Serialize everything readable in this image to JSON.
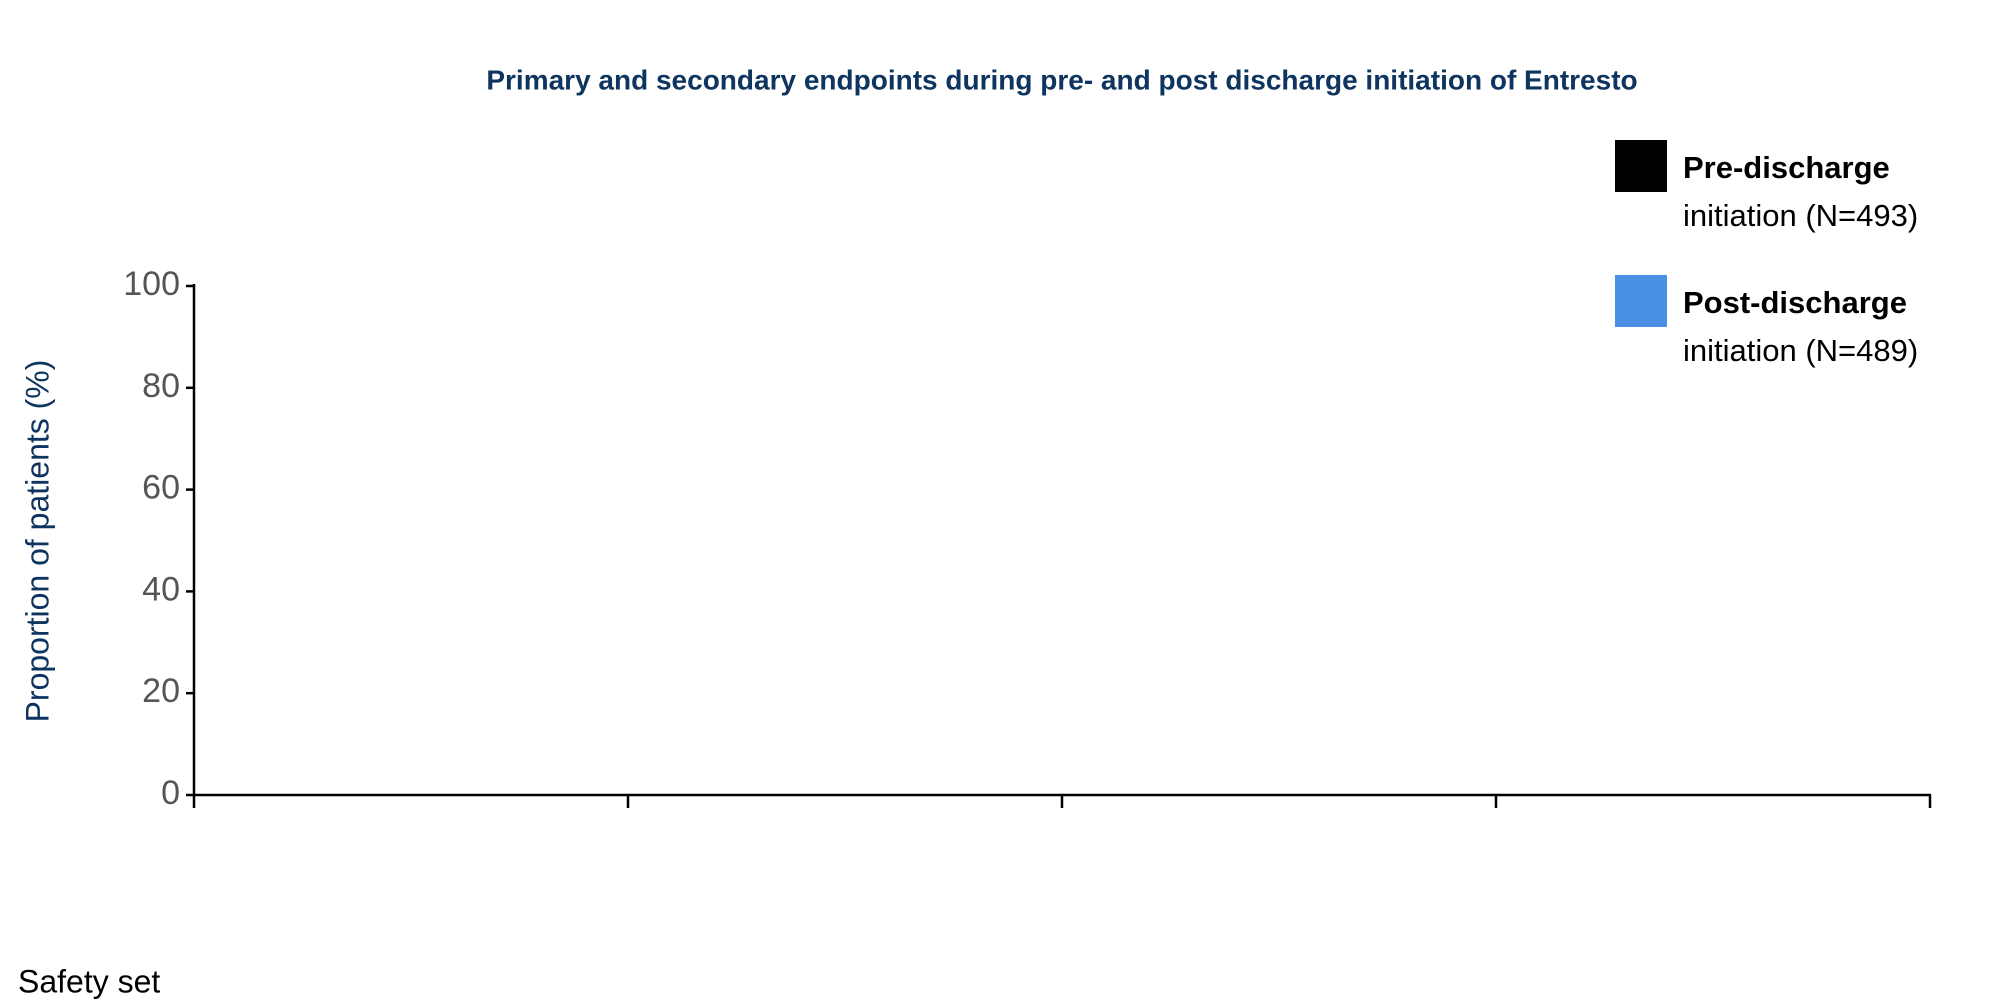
{
  "chart_data": {
    "type": "bar",
    "title": "Primary and secondary endpoints during pre- and post discharge initiation of Entresto",
    "ylabel": "Proportion of patients (%)",
    "footnote": "Safety set",
    "categories": [
      null,
      null,
      null,
      null
    ],
    "series": [
      {
        "name": "Pre-discharge",
        "note": "initiation (N=493)",
        "color": "#000000",
        "values": [
          null,
          null,
          null,
          null
        ]
      },
      {
        "name": "Post-discharge",
        "note": "initiation (N=489)",
        "color": "#4a90e2",
        "values": [
          null,
          null,
          null,
          null
        ]
      }
    ],
    "ylim": [
      0,
      100
    ],
    "yticks": [
      0,
      20,
      40,
      60,
      80,
      100
    ],
    "grid": false
  }
}
